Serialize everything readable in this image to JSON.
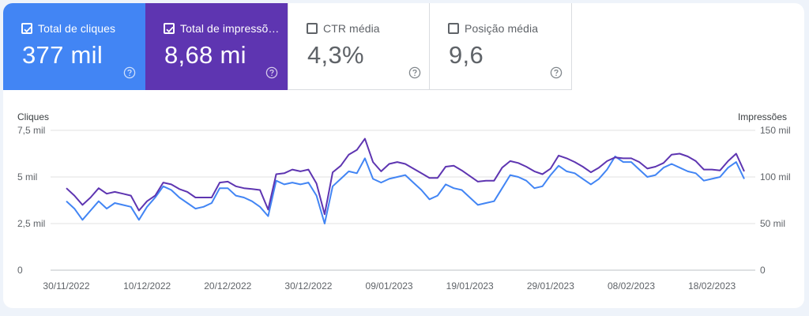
{
  "metrics": [
    {
      "label": "Total de cliques",
      "value": "377 mil",
      "checked": true,
      "color": "#4285f4",
      "icon": "help-circle-icon"
    },
    {
      "label": "Total de impressões",
      "value": "8,68 mi",
      "checked": true,
      "color": "#5e35b1",
      "icon": "help-circle-icon"
    },
    {
      "label": "CTR média",
      "value": "4,3%",
      "checked": false,
      "color": "#ffffff",
      "icon": "help-circle-icon"
    },
    {
      "label": "Posição média",
      "value": "9,6",
      "checked": false,
      "color": "#ffffff",
      "icon": "help-circle-icon"
    }
  ],
  "chart_data": {
    "type": "line",
    "left_axis": {
      "title": "Cliques",
      "ticks": [
        "7,5 mil",
        "5 mil",
        "2,5 mil",
        "0"
      ],
      "range": [
        0,
        7500
      ]
    },
    "right_axis": {
      "title": "Impressões",
      "ticks": [
        "150 mil",
        "100 mil",
        "50 mil",
        "0"
      ],
      "range": [
        0,
        150000
      ]
    },
    "x_labels": [
      "30/11/2022",
      "10/12/2022",
      "20/12/2022",
      "30/12/2022",
      "09/01/2023",
      "19/01/2023",
      "29/01/2023",
      "08/02/2023",
      "18/02/2023"
    ],
    "grid": true,
    "series": [
      {
        "axis": "left",
        "color": "#4285f4",
        "values": [
          3700,
          3300,
          2700,
          3200,
          3700,
          3300,
          3600,
          3500,
          3400,
          2700,
          3400,
          3900,
          4500,
          4300,
          3900,
          3600,
          3300,
          3400,
          3600,
          4400,
          4400,
          4000,
          3900,
          3700,
          3400,
          2900,
          4800,
          4600,
          4700,
          4600,
          4700,
          4000,
          2500,
          4500,
          4900,
          5300,
          5200,
          6000,
          4900,
          4700,
          4900,
          5000,
          5100,
          4700,
          4300,
          3800,
          4000,
          4600,
          4400,
          4300,
          3900,
          3500,
          3600,
          3700,
          4400,
          5100,
          5000,
          4800,
          4400,
          4500,
          5100,
          5600,
          5300,
          5200,
          4900,
          4600,
          4900,
          5400,
          6100,
          5800,
          5800,
          5400,
          5000,
          5100,
          5500,
          5700,
          5500,
          5300,
          5200,
          4800,
          4900,
          5000,
          5500,
          5800,
          4900
        ]
      },
      {
        "axis": "right",
        "color": "#5e35b1",
        "values": [
          88000,
          80000,
          70000,
          78000,
          88000,
          82000,
          84000,
          82000,
          80000,
          64000,
          74000,
          80000,
          94000,
          92000,
          87000,
          84000,
          78000,
          78000,
          78000,
          94000,
          95000,
          90000,
          88000,
          87000,
          86000,
          65000,
          103000,
          104000,
          108000,
          106000,
          108000,
          93000,
          60000,
          105000,
          112000,
          124000,
          129000,
          141000,
          116000,
          106000,
          114000,
          116000,
          114000,
          109000,
          104000,
          99000,
          99000,
          111000,
          112000,
          107000,
          101000,
          95000,
          96000,
          96000,
          110000,
          117000,
          115000,
          111000,
          106000,
          103000,
          109000,
          123000,
          120000,
          116000,
          111000,
          105000,
          110000,
          117000,
          121000,
          120000,
          120000,
          116000,
          109000,
          111000,
          115000,
          124000,
          125000,
          122000,
          117000,
          108000,
          108000,
          107000,
          117000,
          125000,
          106000
        ]
      }
    ]
  }
}
